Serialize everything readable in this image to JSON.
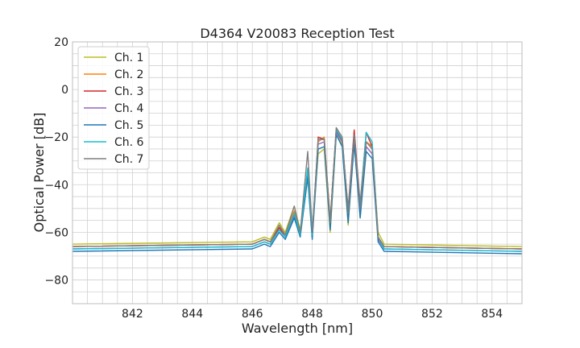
{
  "chart_data": {
    "type": "line",
    "title": "D4364 V20083 Reception Test",
    "xlabel": "Wavelength [nm]",
    "ylabel": "Optical Power [dB]",
    "xlim": [
      840,
      855
    ],
    "ylim": [
      -90,
      20
    ],
    "xticks": [
      842,
      844,
      846,
      848,
      850,
      852,
      854
    ],
    "xtick_labels": [
      "842",
      "844",
      "846",
      "848",
      "850",
      "852",
      "854"
    ],
    "yticks": [
      20,
      0,
      -20,
      -40,
      -60,
      -80
    ],
    "ytick_labels": [
      "20",
      "0",
      "−20",
      "−40",
      "−60",
      "−80"
    ],
    "grid": true,
    "legend_position": "upper-left",
    "series": [
      {
        "name": "Ch. 1",
        "color": "#bcbd22",
        "x": [
          840,
          846,
          846.4,
          846.6,
          846.9,
          847.1,
          847.4,
          847.6,
          847.85,
          848.0,
          848.2,
          848.4,
          848.6,
          848.8,
          849.0,
          849.2,
          849.4,
          849.6,
          849.8,
          850.0,
          850.2,
          850.4,
          855
        ],
        "y": [
          -65,
          -64,
          -62,
          -63,
          -56,
          -60,
          -49,
          -59,
          -36,
          -60,
          -27,
          -25,
          -60,
          -19,
          -23,
          -57,
          -20,
          -54,
          -22,
          -24,
          -60,
          -65,
          -66
        ]
      },
      {
        "name": "Ch. 2",
        "color": "#ff7f0e",
        "x": [
          840,
          846,
          846.4,
          846.6,
          846.9,
          847.1,
          847.4,
          847.6,
          847.85,
          848.0,
          848.2,
          848.4,
          848.6,
          848.8,
          849.0,
          849.2,
          849.4,
          849.6,
          849.8,
          850.0,
          850.2,
          850.4,
          855
        ],
        "y": [
          -66,
          -65,
          -63,
          -64,
          -58,
          -61,
          -51,
          -60,
          -34,
          -61,
          -22,
          -20,
          -55,
          -17,
          -21,
          -52,
          -19,
          -49,
          -22,
          -24,
          -62,
          -66,
          -67
        ]
      },
      {
        "name": "Ch. 3",
        "color": "#d62728",
        "x": [
          840,
          846,
          846.4,
          846.6,
          846.9,
          847.1,
          847.4,
          847.6,
          847.85,
          848.0,
          848.2,
          848.4,
          848.6,
          848.8,
          849.0,
          849.2,
          849.4,
          849.6,
          849.8,
          850.0,
          850.2,
          850.4,
          855
        ],
        "y": [
          -66,
          -65,
          -63,
          -64,
          -58,
          -62,
          -52,
          -61,
          -34,
          -62,
          -20,
          -21,
          -55,
          -17,
          -22,
          -50,
          -17,
          -48,
          -18,
          -24,
          -62,
          -66,
          -67
        ]
      },
      {
        "name": "Ch. 4",
        "color": "#9467bd",
        "x": [
          840,
          846,
          846.4,
          846.6,
          846.9,
          847.1,
          847.4,
          847.6,
          847.85,
          848.0,
          848.2,
          848.4,
          848.6,
          848.8,
          849.0,
          849.2,
          849.4,
          849.6,
          849.8,
          850.0,
          850.2,
          850.4,
          855
        ],
        "y": [
          -67,
          -66,
          -64,
          -65,
          -59,
          -62,
          -53,
          -61,
          -35,
          -62,
          -23,
          -22,
          -57,
          -18,
          -22,
          -54,
          -21,
          -52,
          -24,
          -27,
          -63,
          -67,
          -68
        ]
      },
      {
        "name": "Ch. 5",
        "color": "#1f77b4",
        "x": [
          840,
          846,
          846.4,
          846.6,
          846.9,
          847.1,
          847.4,
          847.6,
          847.85,
          848.0,
          848.2,
          848.4,
          848.6,
          848.8,
          849.0,
          849.2,
          849.4,
          849.6,
          849.8,
          850.0,
          850.2,
          850.4,
          855
        ],
        "y": [
          -68,
          -67,
          -65,
          -66,
          -60,
          -63,
          -54,
          -62,
          -37,
          -63,
          -25,
          -24,
          -59,
          -19,
          -24,
          -56,
          -23,
          -54,
          -26,
          -29,
          -64,
          -68,
          -69
        ]
      },
      {
        "name": "Ch. 6",
        "color": "#17becf",
        "x": [
          840,
          846,
          846.4,
          846.6,
          846.9,
          847.1,
          847.4,
          847.6,
          847.85,
          848.0,
          848.2,
          848.4,
          848.6,
          848.8,
          849.0,
          849.2,
          849.4,
          849.6,
          849.8,
          850.0,
          850.2,
          850.4,
          855
        ],
        "y": [
          -67,
          -66,
          -64,
          -65,
          -59,
          -62,
          -52,
          -61,
          -33,
          -61,
          -21,
          -21,
          -56,
          -17,
          -21,
          -51,
          -19,
          -49,
          -18,
          -22,
          -62,
          -67,
          -68
        ]
      },
      {
        "name": "Ch. 7",
        "color": "#7f7f7f",
        "x": [
          840,
          846,
          846.4,
          846.6,
          846.9,
          847.1,
          847.4,
          847.6,
          847.85,
          848.0,
          848.2,
          848.4,
          848.6,
          848.8,
          849.0,
          849.2,
          849.4,
          849.6,
          849.8,
          850.0,
          850.2,
          850.4,
          855
        ],
        "y": [
          -66,
          -65,
          -63,
          -64,
          -57,
          -61,
          -49,
          -60,
          -26,
          -60,
          -21,
          -21,
          -56,
          -16,
          -20,
          -52,
          -19,
          -50,
          -22,
          -25,
          -62,
          -66,
          -67
        ]
      }
    ]
  }
}
